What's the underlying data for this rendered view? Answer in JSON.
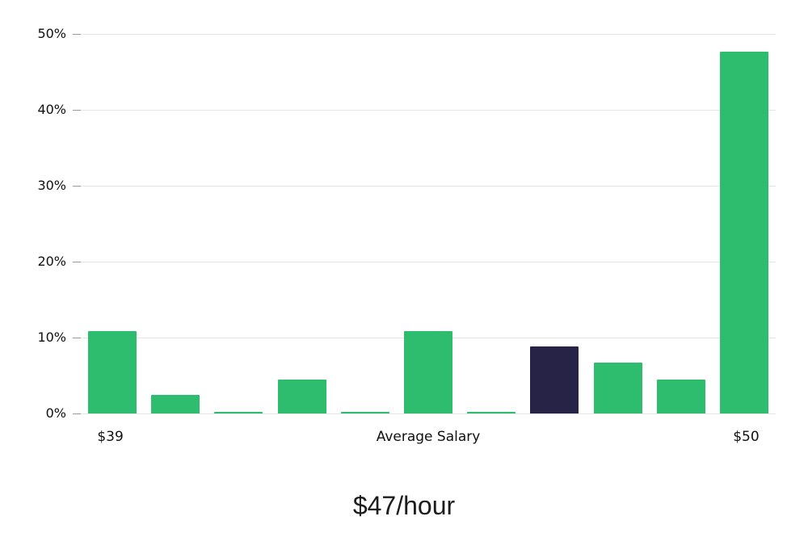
{
  "chart_data": {
    "type": "bar",
    "title": "$47/hour",
    "categories": [
      "$39",
      "",
      "",
      "",
      "",
      "Average Salary",
      "",
      "",
      "",
      "",
      "$50"
    ],
    "values": [
      10.9,
      2.4,
      0.2,
      4.5,
      0.2,
      10.9,
      0.2,
      8.8,
      6.7,
      4.5,
      47.7
    ],
    "highlight_index": 7,
    "yticks": [
      "0%",
      "10%",
      "20%",
      "30%",
      "40%",
      "50%"
    ],
    "ylim": [
      0,
      50
    ],
    "grid": "horizontal",
    "legend": "none",
    "colors": {
      "bar": "#2EBD6F",
      "highlight": "#262347",
      "gridline": "#e4e4e4",
      "tick": "#9a9a9a",
      "text": "#111111"
    }
  }
}
